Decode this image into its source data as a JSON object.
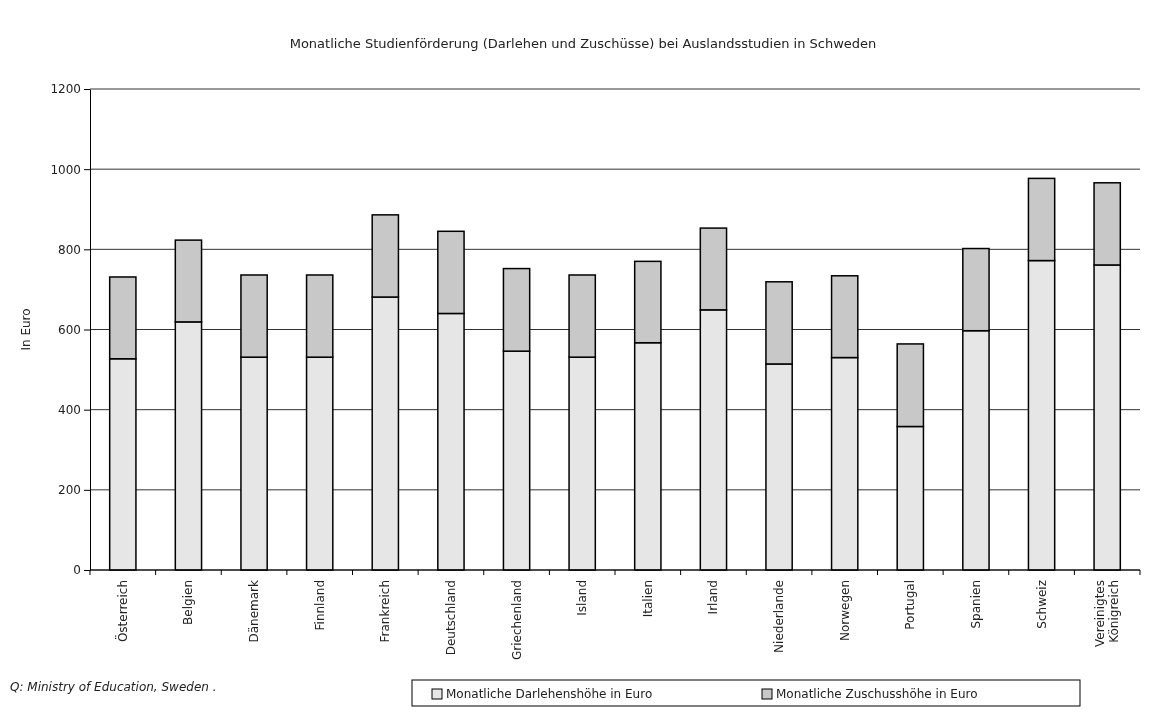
{
  "chart_data": {
    "type": "bar",
    "title": "Monatliche Studienförderung (Darlehen und Zuschüsse) bei Auslandsstudien in Schweden",
    "ylabel": "In Euro",
    "annotations": [
      "Q: Ministry of Education, Sweden ."
    ],
    "categories": [
      "Österreich",
      "Belgien",
      "Dänemark",
      "Finnland",
      "Frankreich",
      "Deutschland",
      "Griechenland",
      "Island",
      "Italien",
      "Irland",
      "Niederlande",
      "Norwegen",
      "Portugal",
      "Spanien",
      "Schweiz",
      "Vereinigtes Königreich"
    ],
    "stacked": true,
    "series": [
      {
        "name": "Monatliche Darlehenshöhe in Euro",
        "color": "#e6e6e6",
        "values": [
          527,
          619,
          531,
          531,
          681,
          640,
          546,
          531,
          567,
          649,
          514,
          530,
          358,
          597,
          772,
          761
        ]
      },
      {
        "name": "Monatliche Zuschusshöhe in Euro",
        "color": "#c8c8c8",
        "values": [
          204,
          204,
          205,
          205,
          205,
          205,
          206,
          205,
          203,
          204,
          205,
          204,
          206,
          205,
          205,
          205
        ]
      }
    ],
    "ylim": [
      0,
      1200
    ],
    "yticks": [
      0,
      200,
      400,
      600,
      800,
      1000,
      1200
    ],
    "grid": "y",
    "legend": "bottom"
  }
}
